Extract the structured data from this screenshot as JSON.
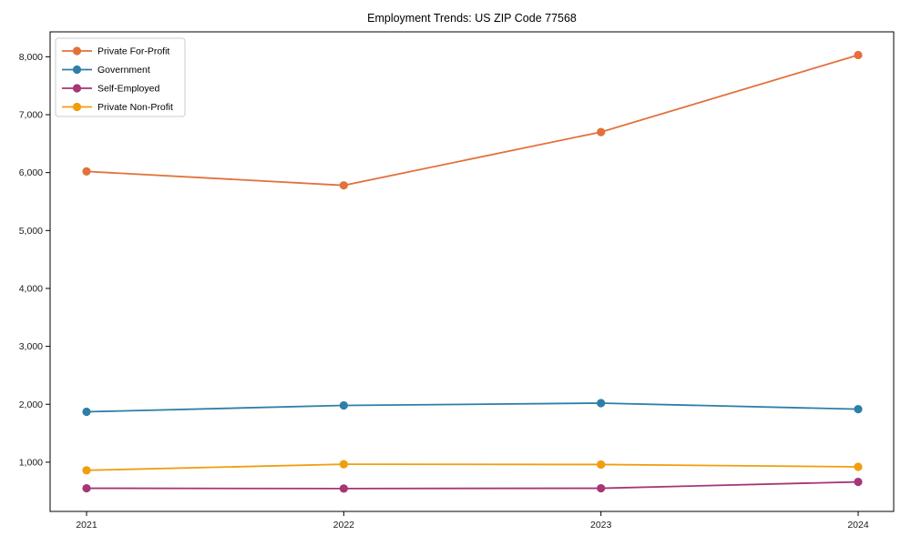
{
  "page": {
    "background": "#ffffff"
  },
  "chart_data": {
    "type": "line",
    "title": "Employment Trends: US ZIP Code 77568",
    "xlabel": "",
    "ylabel": "",
    "x": [
      "2021",
      "2022",
      "2023",
      "2024"
    ],
    "yticks": [
      1000,
      2000,
      3000,
      4000,
      5000,
      6000,
      7000,
      8000
    ],
    "ytick_labels": [
      "1,000",
      "2,000",
      "3,000",
      "4,000",
      "5,000",
      "6,000",
      "7,000",
      "8,000"
    ],
    "ylim": [
      150,
      8430
    ],
    "grid": false,
    "legend_position": "upper-left",
    "series": [
      {
        "name": "Private For-Profit",
        "color": "#e2713b",
        "values": [
          6020,
          5780,
          6700,
          8030
        ]
      },
      {
        "name": "Government",
        "color": "#2e7fa7",
        "values": [
          1870,
          1980,
          2020,
          1915
        ]
      },
      {
        "name": "Self-Employed",
        "color": "#a53677",
        "values": [
          550,
          545,
          550,
          660
        ]
      },
      {
        "name": "Private Non-Profit",
        "color": "#f09e0d",
        "values": [
          860,
          965,
          960,
          920
        ]
      }
    ],
    "style": {
      "spine_color": "#000000",
      "tick_label_color": "#1a1a1a",
      "title_color": "#000000",
      "legend_border_color": "#cccccc",
      "legend_bg_color": "#ffffff"
    }
  }
}
